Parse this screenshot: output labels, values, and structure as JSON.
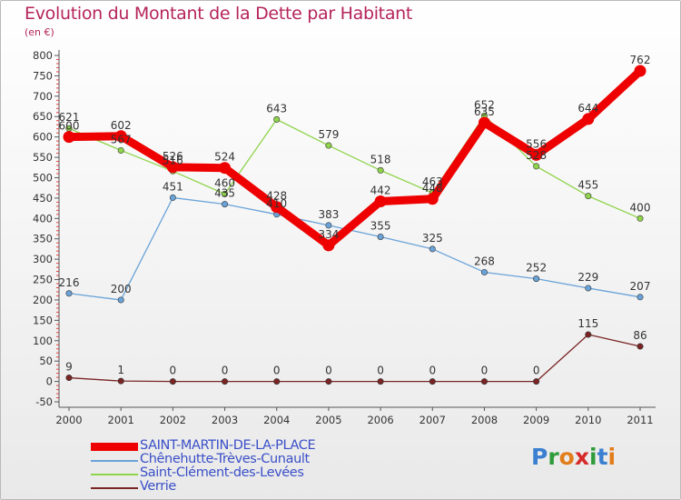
{
  "header": {
    "title": "Evolution du Montant de la Dette par Habitant",
    "subtitle": "(en €)"
  },
  "logo": {
    "text": "Proxiti",
    "letter_colors": [
      "#3a7fd0",
      "#2f9b3a",
      "#e27d1b",
      "#d62a2a",
      "#2f9b3a",
      "#3a7fd0",
      "#e27d1b"
    ]
  },
  "chart_data": {
    "type": "line",
    "title": "Evolution du Montant de la Dette par Habitant",
    "subtitle": "(en €)",
    "x": [
      "2000",
      "2001",
      "2002",
      "2003",
      "2004",
      "2005",
      "2006",
      "2007",
      "2008",
      "2009",
      "2010",
      "2011"
    ],
    "y_ticks": [
      -50,
      0,
      50,
      100,
      150,
      200,
      250,
      300,
      350,
      400,
      450,
      500,
      550,
      600,
      650,
      700,
      750,
      800
    ],
    "ylim": [
      -50,
      800
    ],
    "grid": false,
    "legend_position": "bottom-left",
    "series": [
      {
        "name": "SAINT-MARTIN-DE-LA-PLACE",
        "color": "#ee0000",
        "emphasis": true,
        "values": [
          600,
          602,
          526,
          524,
          428,
          334,
          442,
          448,
          635,
          556,
          644,
          762
        ],
        "labels": [
          "600",
          "602",
          "526",
          "524",
          "428",
          "334",
          "442",
          "448",
          "635",
          "556",
          "644",
          "762"
        ]
      },
      {
        "name": "Chênehutte-Trèves-Cunault",
        "color": "#6aa3d8",
        "emphasis": false,
        "values": [
          216,
          200,
          451,
          435,
          410,
          383,
          355,
          325,
          268,
          252,
          229,
          207
        ],
        "labels": [
          "216",
          "200",
          "451",
          "435",
          "410",
          "383",
          "355",
          "325",
          "268",
          "252",
          "229",
          "207"
        ]
      },
      {
        "name": "Saint-Clément-des-Levées",
        "color": "#8fd44a",
        "emphasis": false,
        "values": [
          621,
          567,
          516,
          460,
          643,
          579,
          518,
          463,
          652,
          528,
          455,
          400
        ],
        "labels": [
          "621",
          "567",
          "516",
          "460",
          "643",
          "579",
          "518",
          "463",
          "652",
          "528",
          "455",
          "400"
        ]
      },
      {
        "name": "Verrie",
        "color": "#7a2424",
        "emphasis": false,
        "values": [
          9,
          1,
          0,
          0,
          0,
          0,
          0,
          0,
          0,
          0,
          115,
          86
        ],
        "labels": [
          "9",
          "1",
          "0",
          "0",
          "0",
          "0",
          "0",
          "0",
          "0",
          "0",
          "115",
          "86"
        ]
      }
    ]
  }
}
